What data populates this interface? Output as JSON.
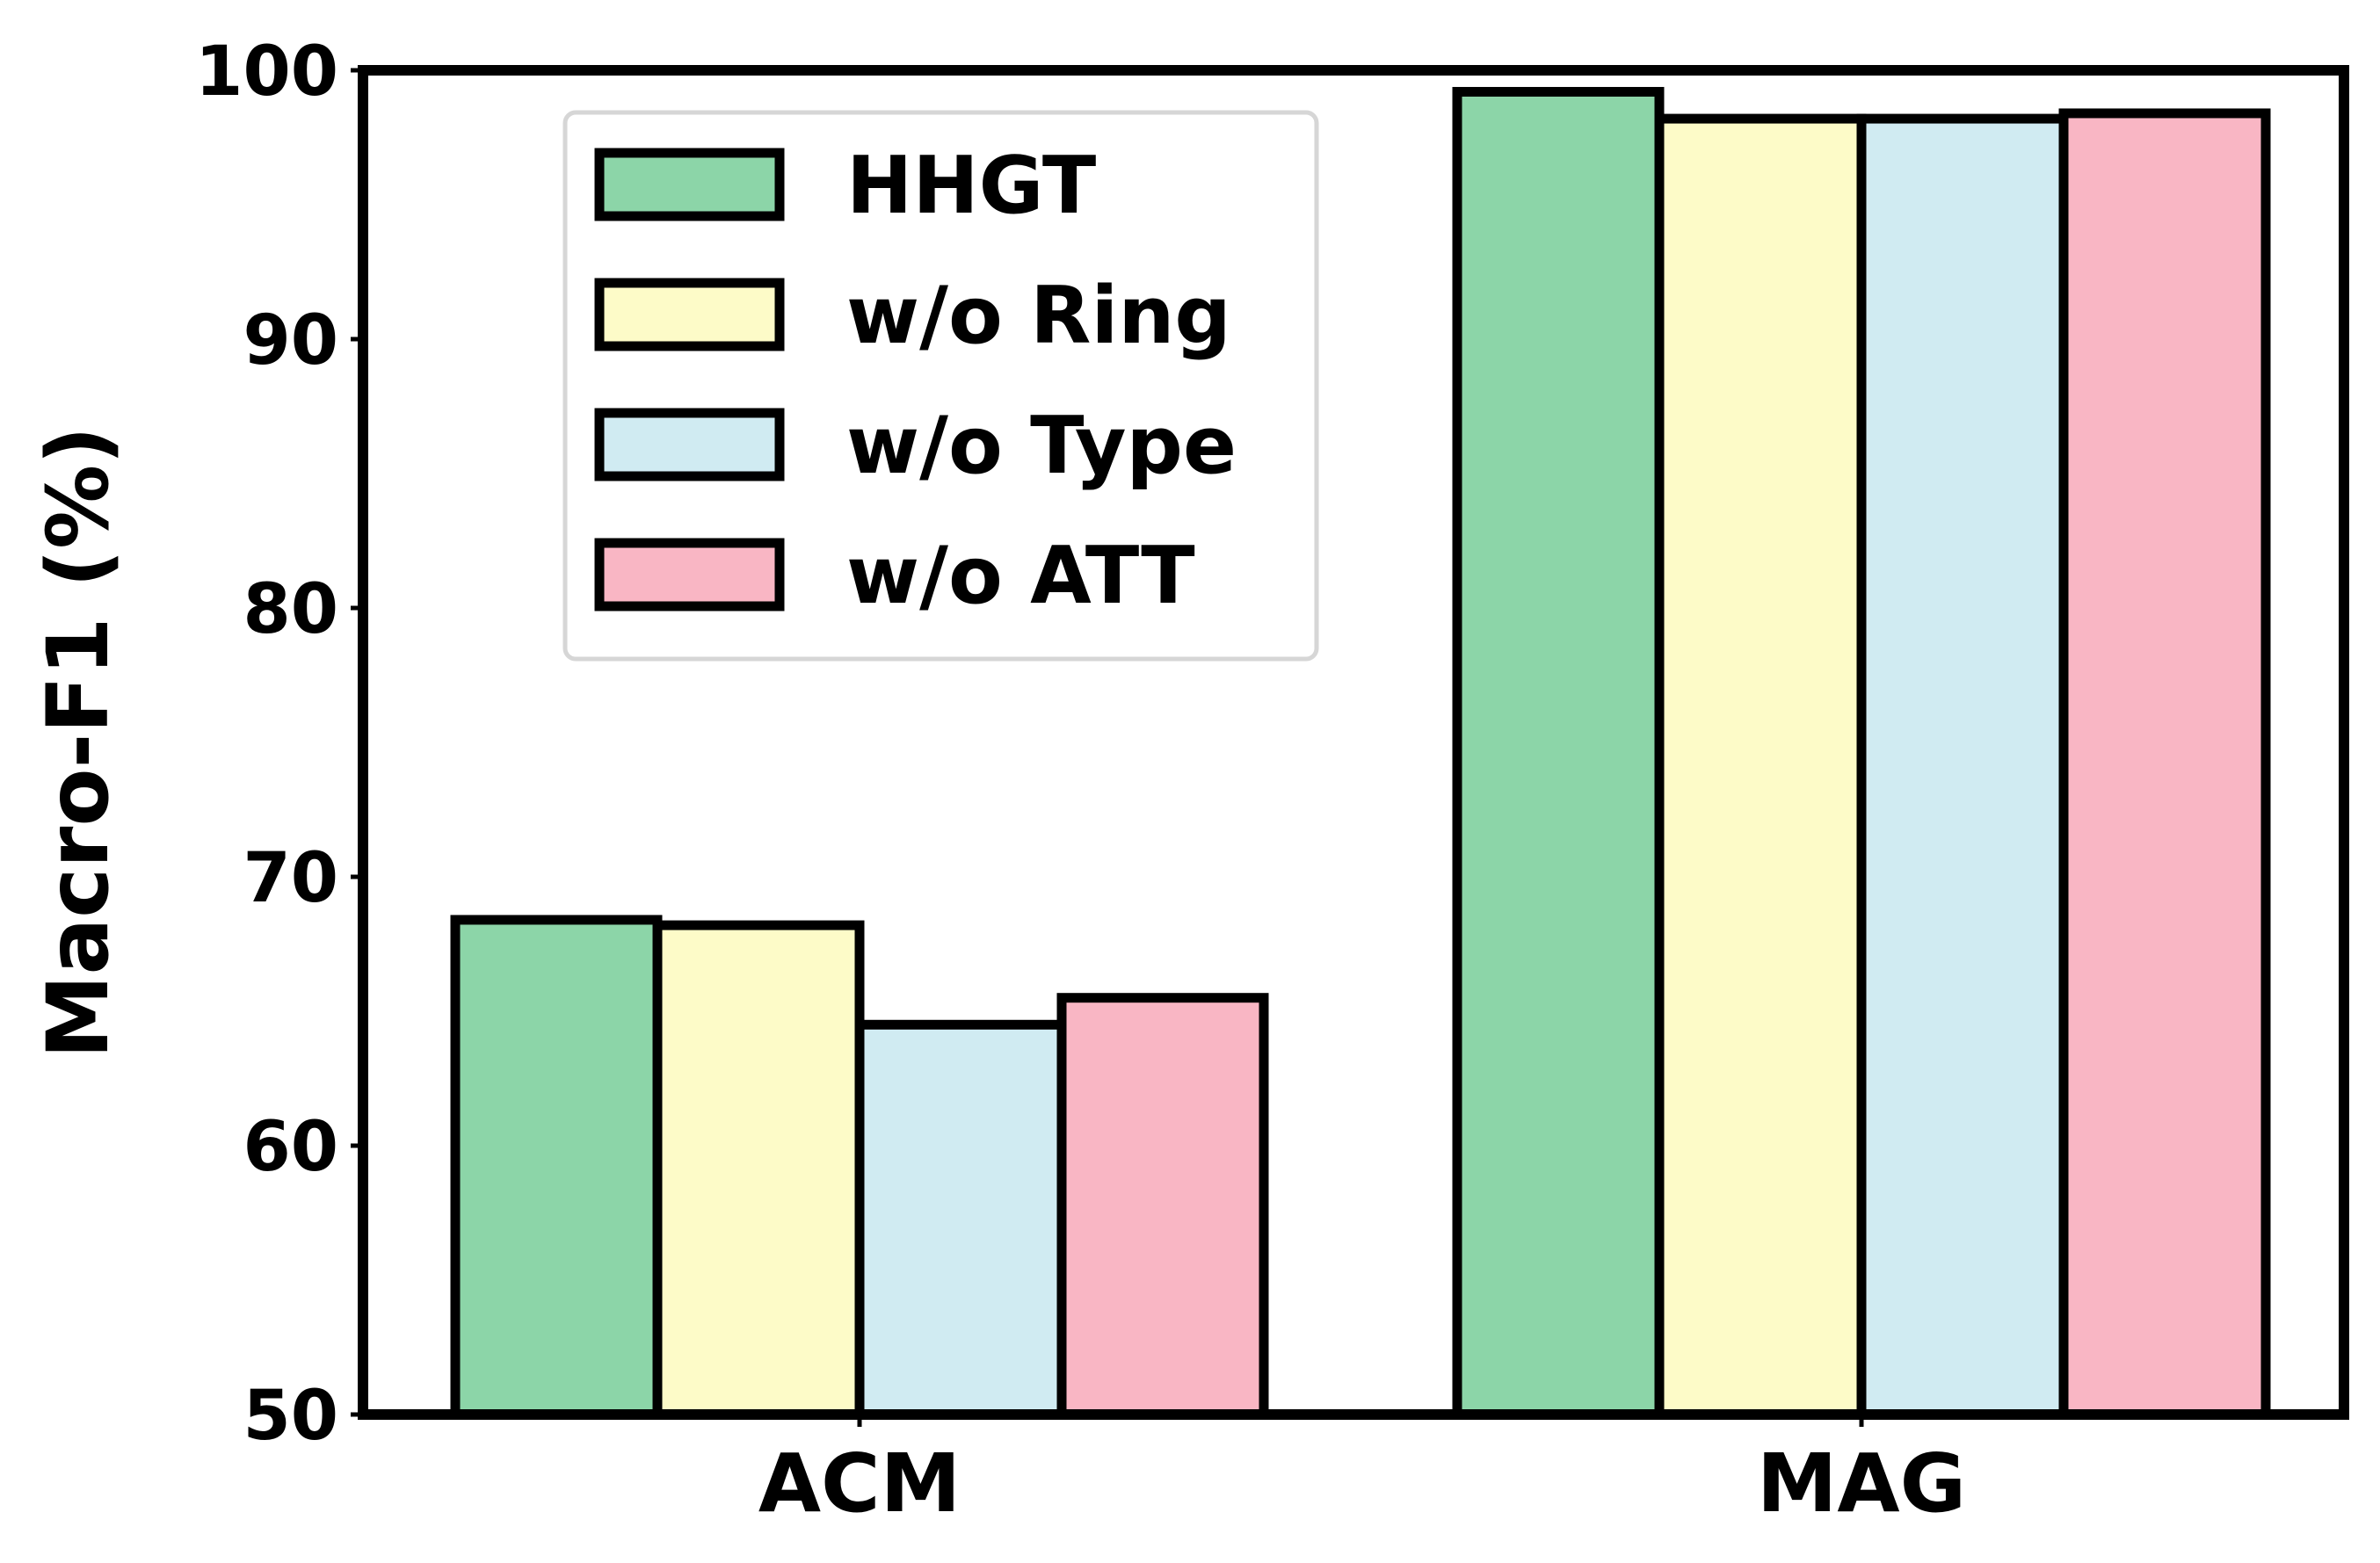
{
  "chart_data": {
    "type": "bar",
    "categories": [
      "ACM",
      "MAG"
    ],
    "series": [
      {
        "name": "HHGT",
        "values": [
          68.4,
          99.2
        ],
        "color": "#8cd5a8"
      },
      {
        "name": "w/o Ring",
        "values": [
          68.2,
          98.2
        ],
        "color": "#fdfbc8"
      },
      {
        "name": "w/o Type",
        "values": [
          64.5,
          98.2
        ],
        "color": "#d0ebf2"
      },
      {
        "name": "w/o ATT",
        "values": [
          65.5,
          98.4
        ],
        "color": "#f9b6c4"
      }
    ],
    "title": "",
    "xlabel": "",
    "ylabel": "Macro-F1 (%)",
    "ylim": [
      50,
      100
    ],
    "yticks": [
      50,
      60,
      70,
      80,
      90,
      100
    ],
    "grid": false,
    "legend_position": "upper-left"
  }
}
